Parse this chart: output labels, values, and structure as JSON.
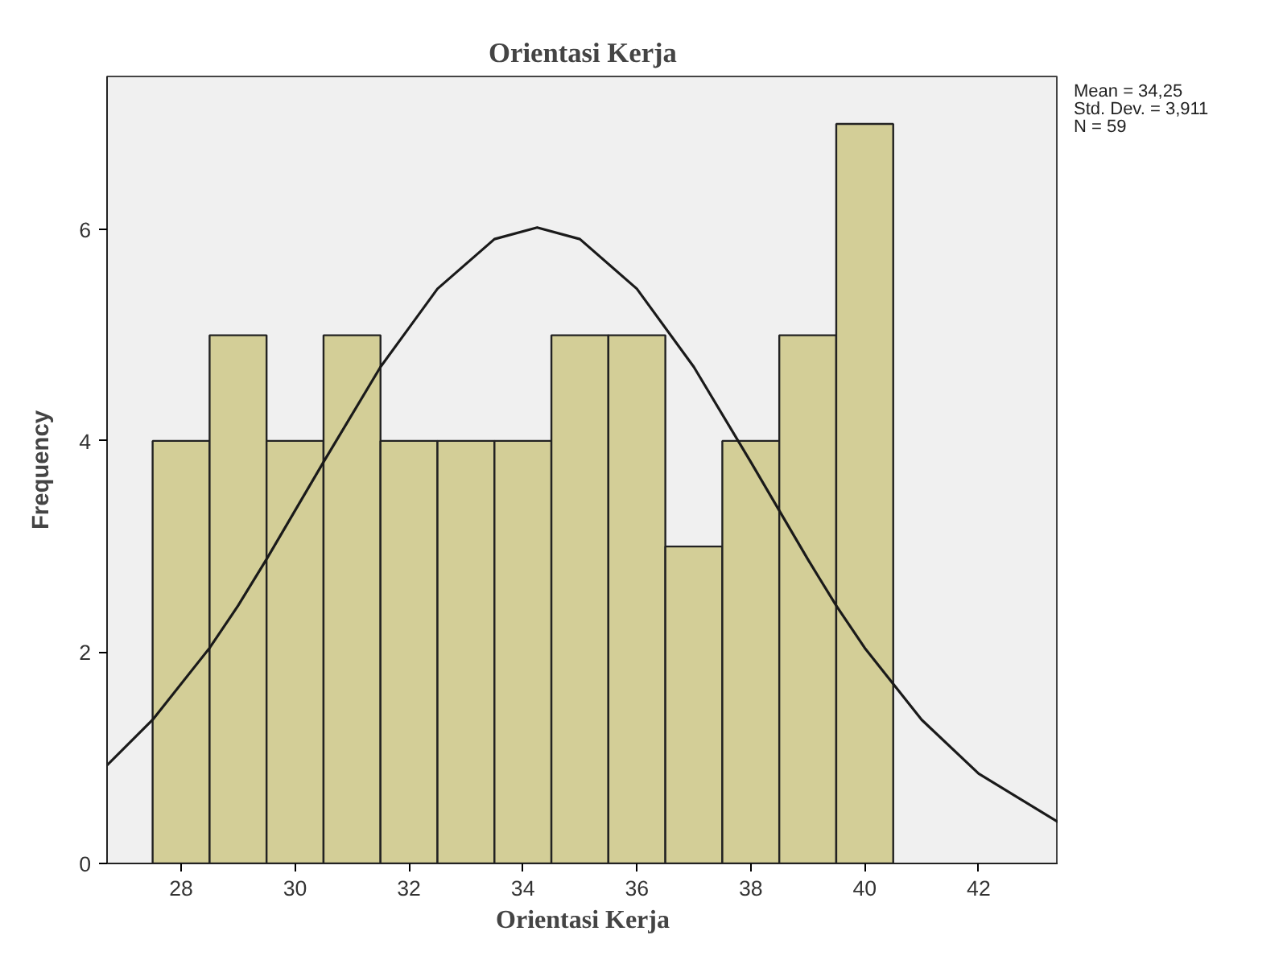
{
  "chart_data": {
    "type": "histogram",
    "title": "Orientasi Kerja",
    "xlabel": "Orientasi Kerja",
    "ylabel": "Frequency",
    "bins": [
      27.5,
      28.5,
      29.5,
      30.5,
      31.5,
      32.5,
      33.5,
      34.5,
      35.5,
      36.5,
      37.5,
      38.5,
      39.5,
      40.5
    ],
    "values": [
      4,
      5,
      4,
      5,
      4,
      4,
      4,
      5,
      5,
      3,
      4,
      5,
      7
    ],
    "color": "#d3ce97",
    "series": [
      {
        "type": "line",
        "color": "#1a1a1a",
        "x": [
          26.7,
          27.5,
          28.5,
          29,
          29.5,
          30.5,
          31.5,
          32.5,
          33.5,
          34.25,
          35,
          36,
          37,
          38,
          39,
          39.5,
          40,
          41,
          42,
          43.4
        ],
        "values": [
          0.93,
          1.36,
          2.04,
          2.44,
          2.88,
          3.8,
          4.7,
          5.44,
          5.91,
          6.02,
          5.91,
          5.44,
          4.7,
          3.8,
          2.88,
          2.44,
          2.04,
          1.36,
          0.85,
          0.39
        ]
      }
    ],
    "xlim": [
      26.7,
      43.4
    ],
    "xticks": [
      28,
      30,
      32,
      34,
      36,
      38,
      40,
      42
    ],
    "ylim": [
      0,
      7.45
    ],
    "yticks": [
      0,
      2,
      4,
      6
    ],
    "grid": false,
    "annotations": [
      "Mean = 34,25",
      "Std. Dev. = 3,911",
      "N = 59"
    ]
  }
}
